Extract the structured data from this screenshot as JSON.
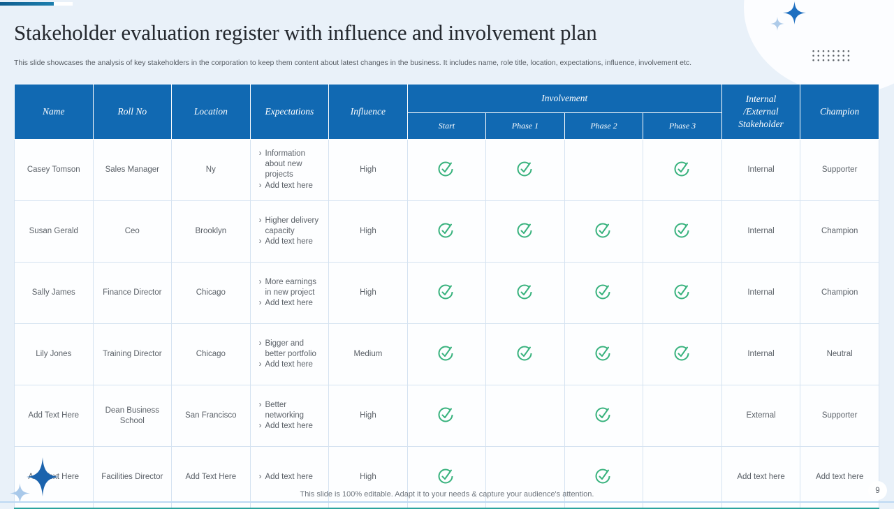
{
  "slide": {
    "title": "Stakeholder evaluation register with influence and involvement plan",
    "subtitle": "This slide showcases the analysis of key stakeholders in the corporation to keep them content about latest changes in the business. It includes name, role title, location, expectations, influence, involvement etc.",
    "footer_note": "This slide is 100% editable.  Adapt it to your needs & capture your audience's attention.",
    "page_number": "9"
  },
  "table": {
    "columns": {
      "name": "Name",
      "roll_no": "Roll No",
      "location": "Location",
      "expectations": "Expectations",
      "influence": "Influence",
      "involvement": "Involvement",
      "phases": [
        "Start",
        "Phase 1",
        "Phase 2",
        "Phase 3"
      ],
      "stakeholder": "Internal /External Stakeholder",
      "champion": "Champion"
    },
    "bullet_char": "›",
    "rows": [
      {
        "name": "Casey Tomson",
        "roll_no": "Sales Manager",
        "location": "Ny",
        "expectations": [
          "Information about new projects",
          "Add text here"
        ],
        "influence": "High",
        "involvement": [
          true,
          true,
          false,
          true
        ],
        "stakeholder_type": "Internal",
        "champion": "Supporter"
      },
      {
        "name": "Susan Gerald",
        "roll_no": "Ceo",
        "location": "Brooklyn",
        "expectations": [
          "Higher delivery capacity",
          "Add text here"
        ],
        "influence": "High",
        "involvement": [
          true,
          true,
          true,
          true
        ],
        "stakeholder_type": "Internal",
        "champion": "Champion"
      },
      {
        "name": "Sally James",
        "roll_no": "Finance Director",
        "location": "Chicago",
        "expectations": [
          "More earnings in new project",
          "Add text here"
        ],
        "influence": "High",
        "involvement": [
          true,
          true,
          true,
          true
        ],
        "stakeholder_type": "Internal",
        "champion": "Champion"
      },
      {
        "name": "Lily Jones",
        "roll_no": "Training Director",
        "location": "Chicago",
        "expectations": [
          "Bigger and better portfolio",
          "Add text here"
        ],
        "influence": "Medium",
        "involvement": [
          true,
          true,
          true,
          true
        ],
        "stakeholder_type": "Internal",
        "champion": "Neutral"
      },
      {
        "name": "Add Text Here",
        "roll_no": "Dean Business School",
        "location": "San Francisco",
        "expectations": [
          "Better networking",
          "Add text here"
        ],
        "influence": "High",
        "involvement": [
          true,
          false,
          true,
          false
        ],
        "stakeholder_type": "External",
        "champion": "Supporter"
      },
      {
        "name": "Add Text Here",
        "roll_no": "Facilities Director",
        "location": "Add Text Here",
        "expectations": [
          "Add text here"
        ],
        "influence": "High",
        "involvement": [
          true,
          false,
          true,
          false
        ],
        "stakeholder_type": "Add text here",
        "champion": "Add text here"
      }
    ]
  },
  "icons": {
    "check": "check-circle-icon",
    "sparkle": "sparkle-icon",
    "dots": "dot-grid-decoration"
  },
  "colors": {
    "header_blue": "#1169b2",
    "check_green": "#38b27d",
    "accent_teal": "#2aa49e",
    "star_blue": "#1e6fc0",
    "star_light": "#aecbe9",
    "background": "#e9f1f9"
  }
}
